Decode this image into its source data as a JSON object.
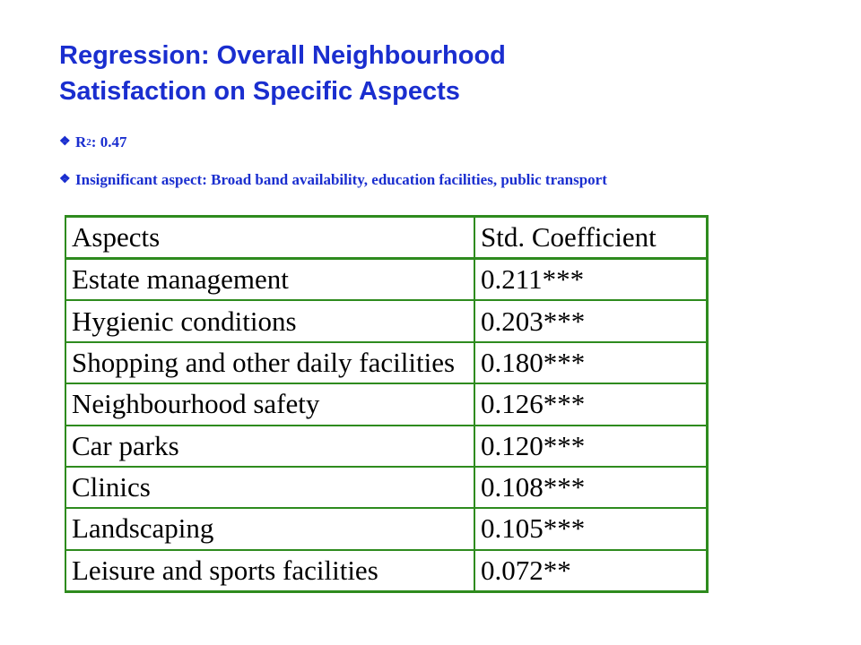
{
  "title": {
    "line1": "Regression: Overall Neighbourhood",
    "line2": "Satisfaction on Specific Aspects"
  },
  "bullets": {
    "icon": "diamond-bullet-icon",
    "r2_prefix": "R",
    "r2_sup": "2",
    "r2_value": ": 0.47",
    "insignificant": "Insignificant aspect: Broad band availability, education facilities, public transport"
  },
  "table": {
    "headers": [
      "Aspects",
      "Std. Coefficient"
    ],
    "rows": [
      [
        "Estate management",
        "0.211***"
      ],
      [
        "Hygienic conditions",
        "0.203***"
      ],
      [
        "Shopping and other daily facilities",
        "0.180***"
      ],
      [
        "Neighbourhood safety",
        "0.126***"
      ],
      [
        "Car parks",
        "0.120***"
      ],
      [
        "Clinics",
        "0.108***"
      ],
      [
        "Landscaping",
        "0.105***"
      ],
      [
        "Leisure and sports facilities",
        "0.072**"
      ]
    ]
  },
  "colors": {
    "title": "#1a2ecf",
    "table_border": "#2e8b1e"
  }
}
